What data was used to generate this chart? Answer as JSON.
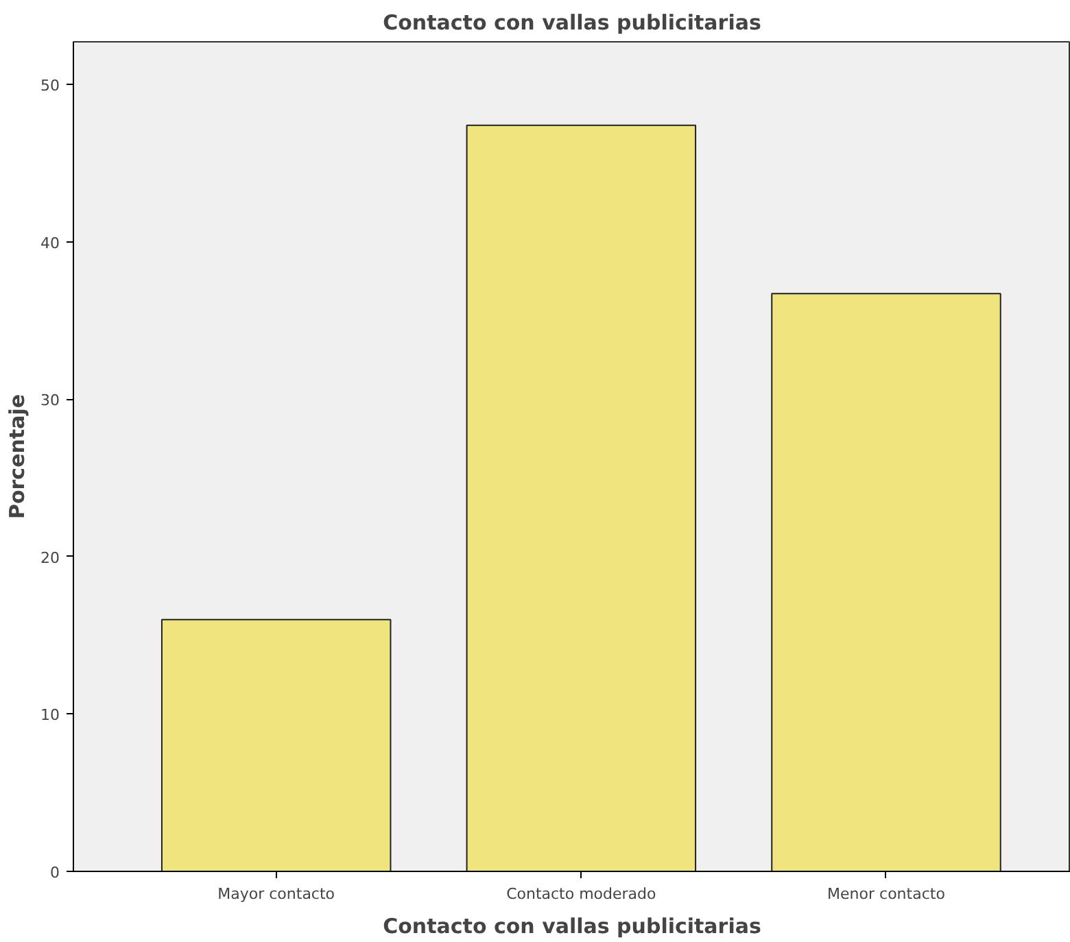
{
  "chart_data": {
    "type": "bar",
    "title": "Contacto con vallas publicitarias",
    "xlabel": "Contacto con vallas publicitarias",
    "ylabel": "Porcentaje",
    "categories": [
      "Mayor contacto",
      "Contacto moderado",
      "Menor contacto"
    ],
    "series": [
      {
        "color": "#f0e47e",
        "values": [
          16.0,
          47.4,
          36.7
        ]
      }
    ],
    "ylim": [
      0,
      52.7
    ],
    "yticks": [
      0,
      10,
      20,
      30,
      40,
      50
    ],
    "grid": false
  }
}
